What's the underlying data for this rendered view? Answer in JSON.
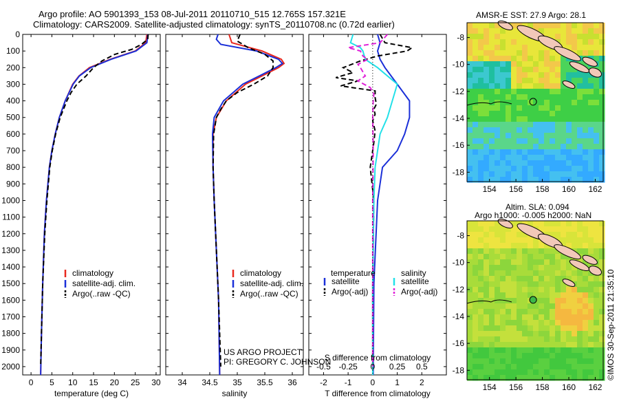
{
  "header": {
    "line1": "Argo profile: AO 5901393_153 08-Jul-2011 20110710_515 12.765S 157.321E",
    "line2": "Climatology: CARS2009. Satellite-adjusted climatology: synTS_20110708.nc (0.72d earlier)"
  },
  "credits": {
    "project": "US ARGO PROJECT",
    "pi": "PI: GREGORY C. JOHNSON",
    "imos": "©IMOS 30-Sep-2011 21:35:10"
  },
  "map_titles": {
    "sst": "AMSR-E SST: 27.9 Argo: 28.1",
    "sla1": "Altim. SLA: 0.094",
    "sla2": "Argo h1000: -0.005 h2000: NaN"
  },
  "colors": {
    "climatology": "#e8281e",
    "satellite": "#1a2fd8",
    "argo": "#000000",
    "sal_satellite": "#22e0e8",
    "sal_argo": "#e020d8"
  },
  "chart_data": [
    {
      "type": "line",
      "name": "temperature-profile",
      "xlabel": "temperature (deg C)",
      "ylabel": "",
      "xlim": [
        -2,
        31
      ],
      "ylim": [
        2050,
        0
      ],
      "xticks": [
        "0",
        "5",
        "10",
        "15",
        "20",
        "25",
        "30"
      ],
      "xtick_values": [
        0,
        5,
        10,
        15,
        20,
        25,
        30
      ],
      "yticks": [
        "0",
        "100",
        "200",
        "300",
        "400",
        "500",
        "600",
        "700",
        "800",
        "900",
        "1000",
        "1100",
        "1200",
        "1300",
        "1400",
        "1500",
        "1600",
        "1700",
        "1800",
        "1900",
        "2000"
      ],
      "ytick_values": [
        0,
        100,
        200,
        300,
        400,
        500,
        600,
        700,
        800,
        900,
        1000,
        1100,
        1200,
        1300,
        1400,
        1500,
        1600,
        1700,
        1800,
        1900,
        2000
      ],
      "legend": [
        "climatology",
        "satellite-adj. clim.",
        "Argo(..raw -QC)"
      ],
      "series": [
        {
          "name": "climatology",
          "depth": [
            0,
            50,
            100,
            150,
            200,
            250,
            300,
            400,
            500,
            600,
            700,
            800,
            1000,
            1200,
            1500,
            1800,
            2050
          ],
          "values": [
            27.8,
            27.5,
            25,
            19,
            14,
            11.5,
            10,
            8.2,
            6.8,
            5.8,
            5,
            4.4,
            3.7,
            3.2,
            2.8,
            2.5,
            2.3
          ]
        },
        {
          "name": "satellite",
          "depth": [
            0,
            50,
            100,
            150,
            200,
            250,
            300,
            400,
            500,
            600,
            700,
            800,
            1000,
            1200,
            1500,
            1800,
            2050
          ],
          "values": [
            28,
            27.8,
            25.2,
            19.2,
            14.3,
            11.6,
            10.1,
            8.2,
            6.8,
            5.8,
            5,
            4.4,
            3.7,
            3.2,
            2.8,
            2.5,
            2.3
          ]
        },
        {
          "name": "argo",
          "depth": [
            0,
            30,
            60,
            90,
            120,
            160,
            200,
            250,
            300,
            350,
            400,
            500,
            600,
            700,
            800,
            1000,
            1200,
            1500,
            1800,
            2000
          ],
          "values": [
            28.1,
            28.0,
            26.5,
            24.2,
            20.1,
            17,
            15,
            13.2,
            11,
            9.6,
            8.6,
            7,
            5.9,
            5.1,
            4.5,
            3.8,
            3.3,
            2.8,
            2.5,
            2.3
          ]
        }
      ]
    },
    {
      "type": "line",
      "name": "salinity-profile",
      "xlabel": "salinity",
      "xlim": [
        33.7,
        36.2
      ],
      "ylim": [
        2050,
        0
      ],
      "xticks": [
        "34",
        "34.5",
        "35",
        "35.5",
        "36"
      ],
      "xtick_values": [
        34,
        34.5,
        35,
        35.5,
        36
      ],
      "legend": [
        "climatology",
        "satellite-adj. clim.",
        "Argo(..raw -QC)"
      ],
      "series": [
        {
          "name": "climatology",
          "depth": [
            0,
            50,
            100,
            150,
            175,
            200,
            250,
            300,
            400,
            500,
            600,
            800,
            1000,
            1300,
            1600,
            2050
          ],
          "values": [
            34.85,
            34.9,
            35.45,
            35.8,
            35.85,
            35.75,
            35.45,
            35.15,
            34.8,
            34.62,
            34.56,
            34.56,
            34.58,
            34.62,
            34.66,
            34.68
          ]
        },
        {
          "name": "satellite",
          "depth": [
            0,
            30,
            60,
            100,
            150,
            175,
            200,
            250,
            300,
            400,
            500,
            600,
            800,
            1000,
            1300,
            1600,
            2050
          ],
          "values": [
            34.65,
            34.62,
            34.7,
            35.35,
            35.75,
            35.82,
            35.7,
            35.4,
            35.1,
            34.75,
            34.58,
            34.55,
            34.56,
            34.58,
            34.62,
            34.66,
            34.68
          ]
        },
        {
          "name": "argo",
          "depth": [
            0,
            40,
            80,
            120,
            160,
            200,
            250,
            300,
            350,
            400,
            450,
            500,
            600,
            800,
            1000,
            1300,
            1600,
            2000
          ],
          "values": [
            35.05,
            35.0,
            35.2,
            35.5,
            35.65,
            35.65,
            35.55,
            35.3,
            35.0,
            34.8,
            34.7,
            34.62,
            34.57,
            34.56,
            34.58,
            34.62,
            34.66,
            34.7
          ]
        }
      ]
    },
    {
      "type": "line",
      "name": "difference-profile",
      "xlabel": "T difference from climatology",
      "xlabel2": "S difference from climatology",
      "xlim": [
        -2.6,
        3
      ],
      "ylim": [
        2050,
        0
      ],
      "xticks": [
        "-2",
        "-1",
        "0",
        "1",
        "2"
      ],
      "xtick_values": [
        -2,
        -1,
        0,
        1,
        2
      ],
      "xticks_s": [
        "-0.5",
        "-0.25",
        "0",
        "0.25",
        "0.5"
      ],
      "xtick_values_s": [
        -2,
        -1,
        0,
        1,
        2
      ],
      "legend": [
        "temperature",
        "satellite",
        "Argo(-adj)",
        "salinity",
        "satellite",
        "Argo(-adj)"
      ],
      "series": [
        {
          "name": "T satellite",
          "depth": [
            0,
            50,
            100,
            150,
            200,
            300,
            400,
            500,
            600,
            700,
            800,
            1000,
            1500,
            2050
          ],
          "values": [
            0.2,
            0.3,
            0.2,
            0.3,
            0.5,
            1.0,
            1.5,
            1.5,
            1.3,
            1.0,
            0.4,
            0.2,
            0.05,
            0.02
          ]
        },
        {
          "name": "T Argo",
          "depth": [
            0,
            50,
            80,
            100,
            130,
            160,
            200,
            230,
            260,
            280,
            310,
            340,
            380,
            420,
            450,
            480,
            520,
            580,
            650,
            800,
            1000,
            1500,
            2000
          ],
          "values": [
            0.3,
            0.5,
            1.6,
            1.4,
            0.2,
            -0.5,
            -1.2,
            -0.8,
            -1.5,
            -0.6,
            -1.3,
            0.1,
            0.1,
            0.15,
            0.05,
            0.1,
            0.0,
            0.1,
            0.05,
            -0.1,
            0.05,
            0.0,
            0.0
          ]
        },
        {
          "name": "S satellite",
          "depth": [
            0,
            50,
            80,
            100,
            150,
            200,
            300,
            400,
            500,
            600,
            800,
            1000,
            1500,
            2050
          ],
          "values": [
            -0.8,
            -0.9,
            -0.5,
            -0.4,
            -0.3,
            0.2,
            1.0,
            0.8,
            0.6,
            0.3,
            0.1,
            0.05,
            0.0,
            0.0
          ]
        },
        {
          "name": "S Argo",
          "depth": [
            0,
            50,
            80,
            100,
            130,
            150,
            180,
            200,
            250,
            280,
            320,
            360,
            400,
            500,
            700,
            1000,
            1500,
            2000
          ],
          "values": [
            0.6,
            0.3,
            -1.0,
            -0.5,
            -0.4,
            -0.2,
            -0.6,
            -0.5,
            -0.3,
            -0.6,
            -0.1,
            0.05,
            0.02,
            0.0,
            0.02,
            0.0,
            0.0,
            0.0
          ]
        }
      ]
    },
    {
      "type": "heatmap",
      "name": "sst-map",
      "xticks": [
        "154",
        "156",
        "158",
        "160",
        "162"
      ],
      "xtick_values": [
        154,
        156,
        158,
        160,
        162
      ],
      "yticks": [
        "-8",
        "-10",
        "-12",
        "-14",
        "-16",
        "-18"
      ],
      "ytick_values": [
        -8,
        -10,
        -12,
        -14,
        -16,
        -18
      ],
      "xlim": [
        152.3,
        162.6
      ],
      "ylim": [
        -18.7,
        -6.9
      ],
      "marker": {
        "lon": 157.3,
        "lat": -12.77
      }
    },
    {
      "type": "heatmap",
      "name": "sla-map",
      "xticks": [
        "154",
        "156",
        "158",
        "160",
        "162"
      ],
      "xtick_values": [
        154,
        156,
        158,
        160,
        162
      ],
      "yticks": [
        "-8",
        "-10",
        "-12",
        "-14",
        "-16",
        "-18"
      ],
      "ytick_values": [
        -8,
        -10,
        -12,
        -14,
        -16,
        -18
      ],
      "xlim": [
        152.3,
        162.6
      ],
      "ylim": [
        -18.7,
        -6.9
      ],
      "marker": {
        "lon": 157.3,
        "lat": -12.77
      }
    }
  ]
}
